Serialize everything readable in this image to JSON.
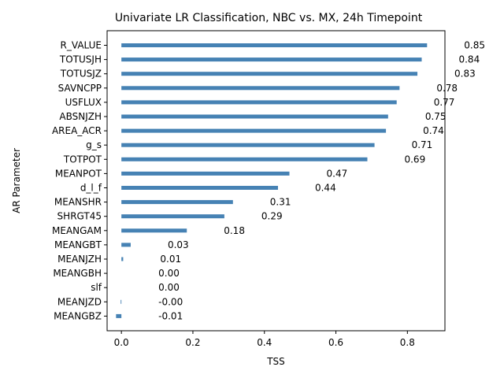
{
  "chart_data": {
    "type": "bar",
    "orientation": "horizontal",
    "title": "Univariate LR Classification, NBC vs. MX, 24h Timepoint",
    "xlabel": "TSS",
    "ylabel": "AR Parameter",
    "xlim": [
      -0.04,
      0.905
    ],
    "xticks": [
      0.0,
      0.2,
      0.4,
      0.6,
      0.8
    ],
    "xtick_labels": [
      "0.0",
      "0.2",
      "0.4",
      "0.6",
      "0.8"
    ],
    "grid": false,
    "bar_color": "#4682b4",
    "categories": [
      "R_VALUE",
      "TOTUSJH",
      "TOTUSJZ",
      "SAVNCPP",
      "USFLUX",
      "ABSNJZH",
      "AREA_ACR",
      "g_s",
      "TOTPOT",
      "MEANPOT",
      "d_l_f",
      "MEANSHR",
      "SHRGT45",
      "MEANGAM",
      "MEANGBT",
      "MEANJZH",
      "MEANGBH",
      "slf",
      "MEANJZD",
      "MEANGBZ"
    ],
    "values": [
      0.855,
      0.84,
      0.828,
      0.778,
      0.77,
      0.746,
      0.74,
      0.708,
      0.688,
      0.47,
      0.438,
      0.312,
      0.288,
      0.183,
      0.026,
      0.005,
      0.0,
      0.0,
      -0.002,
      -0.015
    ],
    "data_labels": [
      "0.85",
      "0.84",
      "0.83",
      "0.78",
      "0.77",
      "0.75",
      "0.74",
      "0.71",
      "0.69",
      "0.47",
      "0.44",
      "0.31",
      "0.29",
      "0.18",
      "0.03",
      "0.01",
      "0.00",
      "0.00",
      "-0.00",
      "-0.01"
    ]
  }
}
